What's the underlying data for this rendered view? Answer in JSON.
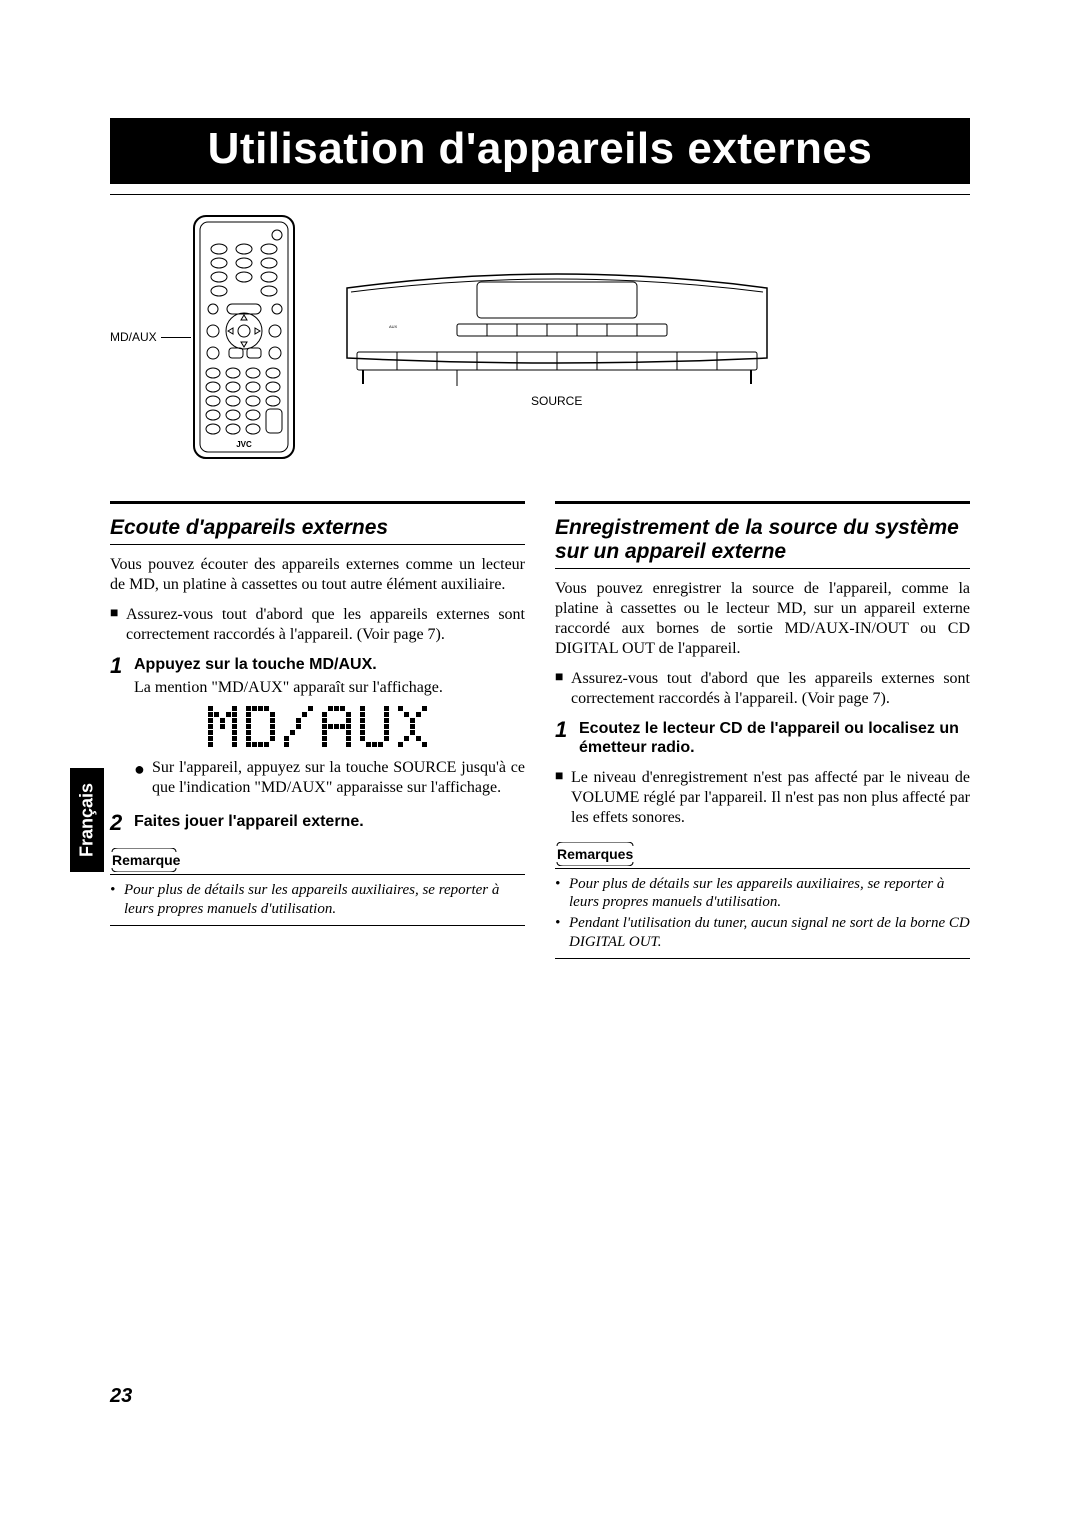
{
  "page_number": "23",
  "language_tab": "Français",
  "title": "Utilisation d'appareils externes",
  "colors": {
    "black": "#000000",
    "white": "#ffffff",
    "stroke": "#000000"
  },
  "remote": {
    "label": "MD/AUX",
    "brand": "JVC"
  },
  "unit": {
    "source_label": "SOURCE"
  },
  "left": {
    "heading": "Ecoute d'appareils externes",
    "intro": "Vous pouvez écouter des appareils externes comme un lecteur de MD, un platine à cassettes ou tout autre élément auxiliaire.",
    "sq_bullet": "Assurez-vous tout d'abord que les appareils externes sont correctement raccordés à l'appareil. (Voir page 7).",
    "step1_num": "1",
    "step1_title": "Appuyez sur la touche MD/AUX.",
    "step1_text": "La mention \"MD/AUX\" apparaît sur l'affichage.",
    "step1_sub": "Sur l'appareil, appuyez sur la touche SOURCE jusqu'à ce que l'indication \"MD/AUX\" apparaisse sur l'affichage.",
    "step2_num": "2",
    "step2_title": "Faites jouer l'appareil externe.",
    "note_head": "Remarque",
    "note1": "Pour plus de détails sur les appareils auxiliaires, se reporter à leurs propres manuels d'utilisation."
  },
  "right": {
    "heading": "Enregistrement de la source du système sur un appareil externe",
    "intro": "Vous pouvez enregistrer la source de l'appareil, comme la platine à cassettes ou le lecteur MD, sur un appareil externe raccordé aux bornes de sortie MD/AUX-IN/OUT ou CD DIGITAL OUT de l'appareil.",
    "sq_bullet": "Assurez-vous tout d'abord que les appareils externes sont correctement raccordés à l'appareil. (Voir page 7).",
    "step1_num": "1",
    "step1_title": "Ecoutez le lecteur CD de l'appareil ou localisez un émetteur radio.",
    "level_bullet": "Le niveau d'enregistrement n'est pas affecté par le niveau de VOLUME réglé par l'appareil. Il n'est pas non plus affecté par les effets sonores.",
    "note_head": "Remarques",
    "note1": "Pour plus de détails sur les appareils auxiliaires, se reporter à leurs propres manuels d'utilisation.",
    "note2": "Pendant l'utilisation du tuner, aucun signal ne sort de la borne CD DIGITAL OUT."
  },
  "dotmatrix": {
    "text": "MD/AUX",
    "rows": 7,
    "col_spacing": 8,
    "dot_size": 5,
    "color": "#000000"
  }
}
